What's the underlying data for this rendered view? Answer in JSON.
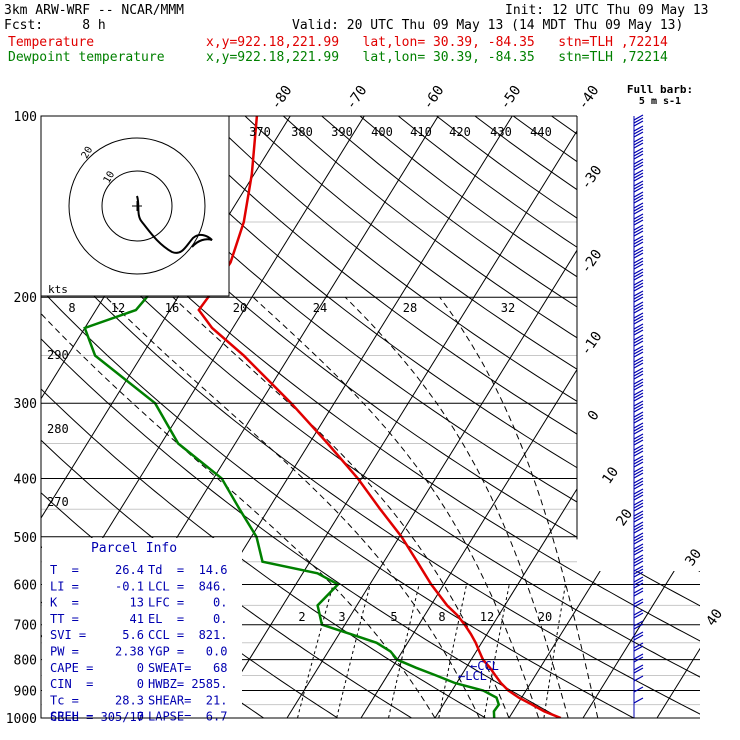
{
  "header": {
    "model": "3km ARW-WRF -- NCAR/MMM",
    "init": "Init: 12 UTC Thu 09 May 13",
    "fcst": "Fcst:     8 h",
    "valid": "Valid: 20 UTC Thu 09 May 13 (14 MDT Thu 09 May 13)",
    "temp_label": "Temperature",
    "temp_info": "x,y=922.18,221.99   lat,lon= 30.39, -84.35   stn=TLH ,72214",
    "dew_label": "Dewpoint temperature",
    "dew_info": "x,y=922.18,221.99   lat,lon= 30.39, -84.35   stn=TLH ,72214"
  },
  "colors": {
    "temperature": "#e00000",
    "dewpoint": "#008000",
    "parcel_text": "#0000b0",
    "barbs": "#0000b0"
  },
  "chart_data": {
    "type": "line",
    "chart_kind": "skew-T log-p sounding",
    "y_axis": {
      "label": "pressure (hPa)",
      "scale": "log",
      "ticks": [
        100,
        200,
        300,
        400,
        500,
        600,
        700,
        800,
        900,
        1000
      ]
    },
    "skewed_isotherm_labels": [
      "-80",
      "-70",
      "-60",
      "-50",
      "-40",
      "-30",
      "-20",
      "-10",
      "0",
      "10",
      "20",
      "30",
      "40"
    ],
    "theta_labels": [
      "370",
      "380",
      "390",
      "400",
      "410",
      "420",
      "430",
      "440"
    ],
    "theta_labels_left": [
      "290",
      "280",
      "270"
    ],
    "mixing_ratio_labels": [
      "2",
      "3",
      "5",
      "8",
      "12",
      "20"
    ],
    "hodograph_speed_labels": [
      "8",
      "12",
      "16",
      "20",
      "24",
      "28",
      "32"
    ],
    "hodograph_ring_labels": [
      "20",
      "10"
    ],
    "hodograph_units": "kts",
    "barb_legend": [
      "Full barb:",
      "5 m s-1"
    ],
    "lcl_label": "LCL",
    "ccl_label": "CCL",
    "series": [
      {
        "name": "Temperature",
        "values": [
          {
            "p": 1000,
            "t": 27.0
          },
          {
            "p": 975,
            "t": 24.2
          },
          {
            "p": 950,
            "t": 22.0
          },
          {
            "p": 925,
            "t": 19.6
          },
          {
            "p": 900,
            "t": 17.6
          },
          {
            "p": 875,
            "t": 16.0
          },
          {
            "p": 850,
            "t": 14.6
          },
          {
            "p": 825,
            "t": 13.2
          },
          {
            "p": 800,
            "t": 11.6
          },
          {
            "p": 775,
            "t": 10.4
          },
          {
            "p": 750,
            "t": 9.2
          },
          {
            "p": 725,
            "t": 7.8
          },
          {
            "p": 700,
            "t": 6.2
          },
          {
            "p": 675,
            "t": 4.4
          },
          {
            "p": 650,
            "t": 2.2
          },
          {
            "p": 600,
            "t": -1.7
          },
          {
            "p": 550,
            "t": -5.5
          },
          {
            "p": 500,
            "t": -9.7
          },
          {
            "p": 450,
            "t": -14.9
          },
          {
            "p": 400,
            "t": -20.5
          },
          {
            "p": 350,
            "t": -27.5
          },
          {
            "p": 300,
            "t": -35.8
          },
          {
            "p": 250,
            "t": -46.2
          },
          {
            "p": 225,
            "t": -52.8
          },
          {
            "p": 210,
            "t": -56.1
          },
          {
            "p": 200,
            "t": -55.9
          },
          {
            "p": 175,
            "t": -55.8
          },
          {
            "p": 150,
            "t": -57.4
          },
          {
            "p": 125,
            "t": -60.3
          },
          {
            "p": 100,
            "t": -64.5
          }
        ]
      },
      {
        "name": "Dewpoint temperature",
        "values": [
          {
            "p": 1000,
            "t": 18.0
          },
          {
            "p": 975,
            "t": 17.4
          },
          {
            "p": 950,
            "t": 17.5
          },
          {
            "p": 925,
            "t": 16.6
          },
          {
            "p": 900,
            "t": 14.2
          },
          {
            "p": 875,
            "t": 9.8
          },
          {
            "p": 850,
            "t": 6.6
          },
          {
            "p": 825,
            "t": 3.2
          },
          {
            "p": 800,
            "t": 0.0
          },
          {
            "p": 775,
            "t": -1.6
          },
          {
            "p": 750,
            "t": -4.2
          },
          {
            "p": 725,
            "t": -8.5
          },
          {
            "p": 700,
            "t": -13.1
          },
          {
            "p": 650,
            "t": -15.3
          },
          {
            "p": 600,
            "t": -14.3
          },
          {
            "p": 575,
            "t": -18.0
          },
          {
            "p": 550,
            "t": -26.4
          },
          {
            "p": 500,
            "t": -29.3
          },
          {
            "p": 450,
            "t": -33.9
          },
          {
            "p": 400,
            "t": -38.9
          },
          {
            "p": 350,
            "t": -47.7
          },
          {
            "p": 300,
            "t": -54.2
          },
          {
            "p": 250,
            "t": -66.3
          },
          {
            "p": 225,
            "t": -70.0
          },
          {
            "p": 210,
            "t": -64.6
          },
          {
            "p": 200,
            "t": -64.2
          },
          {
            "p": 175,
            "t": -64.6
          },
          {
            "p": 150,
            "t": -68.0
          },
          {
            "p": 125,
            "t": -70.7
          },
          {
            "p": 100,
            "t": -68.6
          }
        ]
      }
    ]
  },
  "parcel": {
    "title": "Parcel Info",
    "rows": [
      [
        "T  =     26.4",
        "Td  =  14.6"
      ],
      [
        "LI =     -0.1",
        "LCL =  846."
      ],
      [
        "K  =       13",
        "LFC =    0."
      ],
      [
        "TT =       41",
        "EL  =    0."
      ],
      [
        "SVI =     5.6",
        "CCL =  821."
      ],
      [
        "PW =     2.38",
        "YGP =   0.0"
      ],
      [
        "CAPE =      0",
        "SWEAT=   68"
      ],
      [
        "CIN  =      0",
        "HWBZ= 2585."
      ],
      [
        "Tc =     28.3",
        "SHEAR=  21."
      ],
      [
        "SREH =      0",
        "LAPSE=  6.7"
      ]
    ],
    "cell": "CELL = 305/17"
  }
}
